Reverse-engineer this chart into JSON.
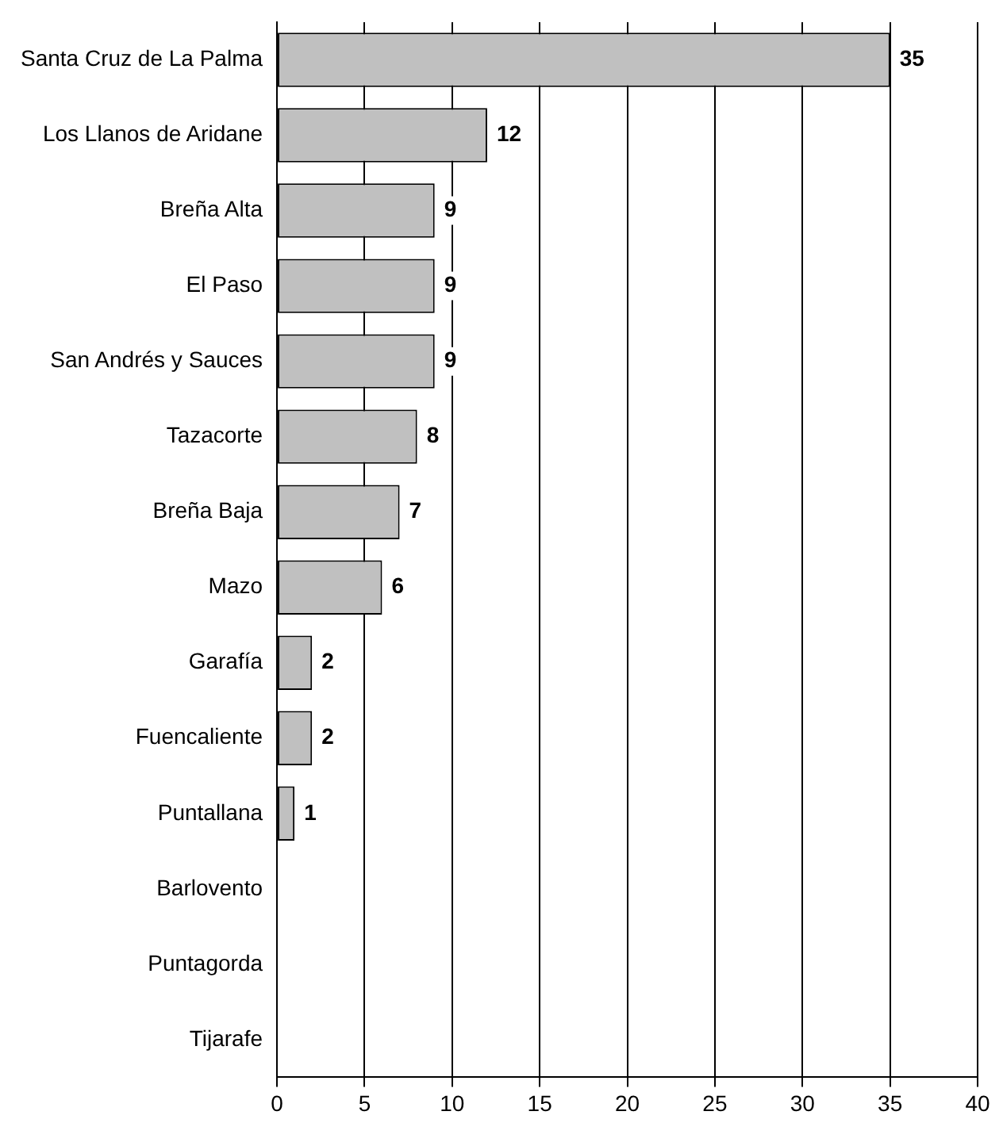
{
  "chart_data": {
    "type": "bar",
    "orientation": "horizontal",
    "categories": [
      "Santa Cruz de La Palma",
      "Los Llanos de Aridane",
      "Breña Alta",
      "El Paso",
      "San Andrés y Sauces",
      "Tazacorte",
      "Breña Baja",
      "Mazo",
      "Garafía",
      "Fuencaliente",
      "Puntallana",
      "Barlovento",
      "Puntagorda",
      "Tijarafe"
    ],
    "values": [
      35,
      12,
      9,
      9,
      9,
      8,
      7,
      6,
      2,
      2,
      1,
      0,
      0,
      0
    ],
    "value_labels": [
      "35",
      "12",
      "9",
      "9",
      "9",
      "8",
      "7",
      "6",
      "2",
      "2",
      "1",
      null,
      null,
      null
    ],
    "color": "#c0c0c0",
    "xlim": [
      0,
      40
    ],
    "xticks": [
      0,
      5,
      10,
      15,
      20,
      25,
      30,
      35,
      40
    ],
    "grid": "x",
    "legend": false
  }
}
